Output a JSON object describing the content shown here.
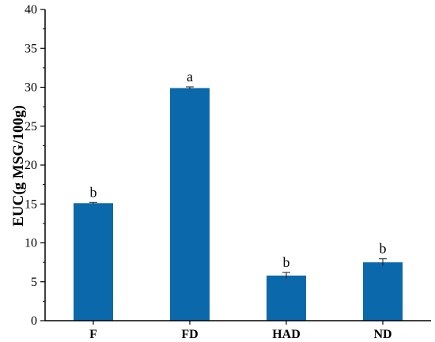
{
  "chart_data": {
    "type": "bar",
    "title": "",
    "xlabel": "",
    "ylabel": "EUC(g MSG/100g)",
    "categories": [
      "F",
      "FD",
      "HAD",
      "ND"
    ],
    "values": [
      15.1,
      29.9,
      5.8,
      7.5
    ],
    "errors": [
      0.1,
      0.15,
      0.4,
      0.45
    ],
    "significance": [
      "b",
      "a",
      "b",
      "b"
    ],
    "ylim": [
      0,
      40
    ],
    "yticks": [
      0,
      5,
      10,
      15,
      20,
      25,
      30,
      35,
      40
    ],
    "ytick_labels": [
      "0",
      "5",
      "10",
      "15",
      "20",
      "25",
      "30",
      "35",
      "40"
    ],
    "grid": false,
    "legend": "none",
    "bar_color": "#0b69ab"
  }
}
